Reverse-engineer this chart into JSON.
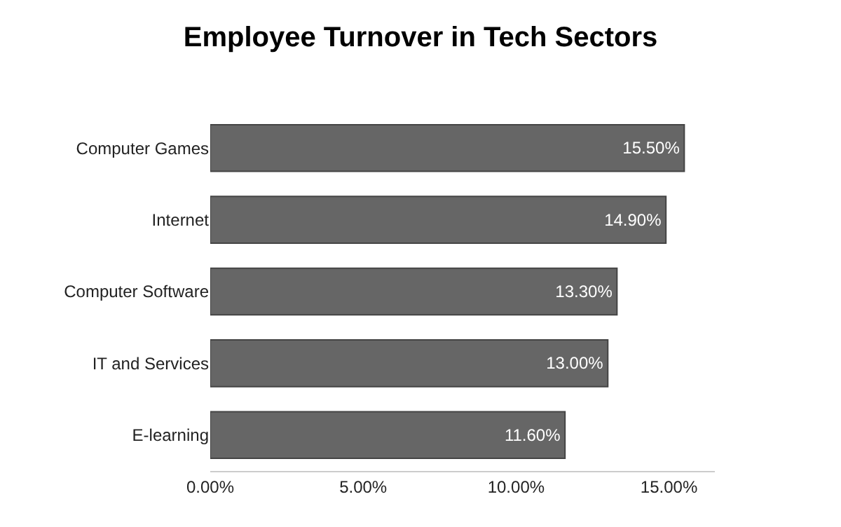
{
  "chart_data": {
    "type": "bar",
    "orientation": "horizontal",
    "title": "Employee Turnover in Tech Sectors",
    "categories": [
      "Computer Games",
      "Internet",
      "Computer Software",
      "IT and Services",
      "E-learning"
    ],
    "values": [
      15.5,
      14.9,
      13.3,
      13.0,
      11.6
    ],
    "value_labels": [
      "15.50%",
      "14.90%",
      "13.30%",
      "13.00%",
      "11.60%"
    ],
    "color": "#666666",
    "xlim": [
      0,
      16.5
    ],
    "xticks": [
      {
        "value": 0,
        "label": "0.00%"
      },
      {
        "value": 5,
        "label": "5.00%"
      },
      {
        "value": 10,
        "label": "10.00%"
      },
      {
        "value": 15,
        "label": "15.00%"
      }
    ],
    "grid": false,
    "legend": false
  }
}
